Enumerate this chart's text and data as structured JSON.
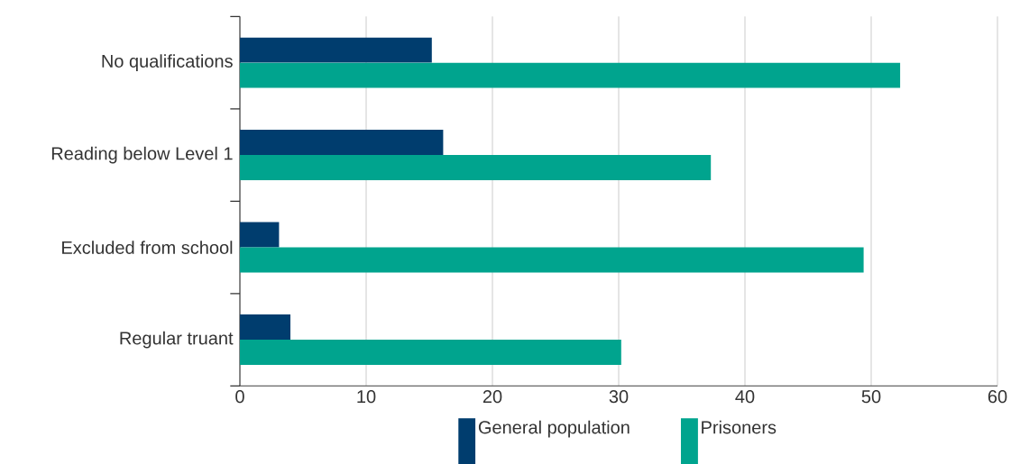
{
  "chart_data": {
    "type": "bar",
    "orientation": "horizontal",
    "categories": [
      "No qualifications",
      "Reading below Level 1",
      "Excluded from school",
      "Regular truant"
    ],
    "series": [
      {
        "name": "General population",
        "color": "#003d6e",
        "values": [
          15.2,
          16.1,
          3.1,
          4.0
        ]
      },
      {
        "name": "Prisoners",
        "color": "#00a48e",
        "values": [
          52.3,
          37.3,
          49.4,
          30.2
        ]
      }
    ],
    "xlim": [
      0,
      60
    ],
    "xticks": [
      0,
      10,
      20,
      30,
      40,
      50,
      60
    ],
    "grid": "x",
    "legend": "bottom"
  }
}
